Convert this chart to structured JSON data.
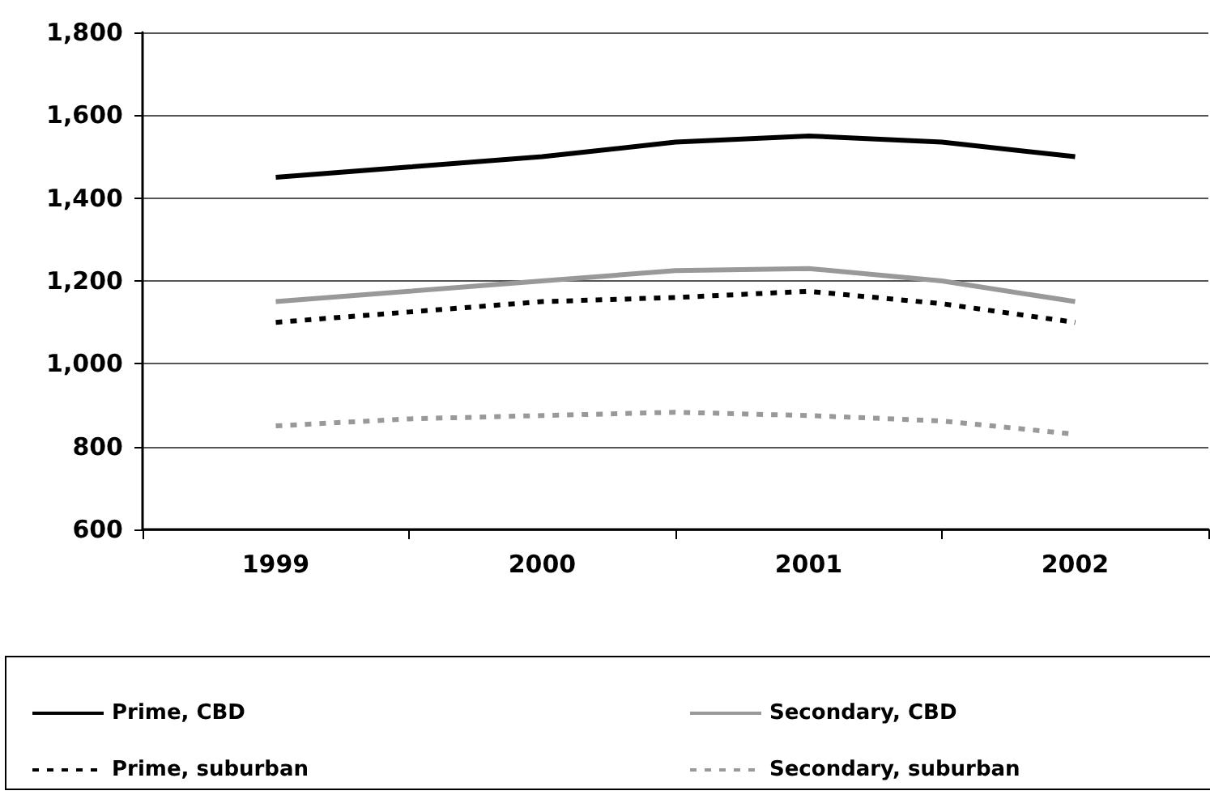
{
  "chart_data": {
    "type": "line",
    "x": [
      1999,
      1999.5,
      2000,
      2000.5,
      2001,
      2001.5,
      2002
    ],
    "xlim": [
      1998.5,
      2002.5
    ],
    "xticks": [
      {
        "value": 1998.5,
        "label": null
      },
      {
        "value": 1999,
        "label": "1999"
      },
      {
        "value": 1999.5,
        "label": null
      },
      {
        "value": 2000,
        "label": "2000"
      },
      {
        "value": 2000.5,
        "label": null
      },
      {
        "value": 2001,
        "label": "2001"
      },
      {
        "value": 2001.5,
        "label": null
      },
      {
        "value": 2002,
        "label": "2002"
      },
      {
        "value": 2002.5,
        "label": null
      }
    ],
    "ylim": [
      600,
      1800
    ],
    "yticks": [
      {
        "value": 600,
        "label": "600"
      },
      {
        "value": 800,
        "label": "800"
      },
      {
        "value": 1000,
        "label": "1,000"
      },
      {
        "value": 1200,
        "label": "1,200"
      },
      {
        "value": 1400,
        "label": "1,400"
      },
      {
        "value": 1600,
        "label": "1,600"
      },
      {
        "value": 1800,
        "label": "1,800"
      }
    ],
    "series": [
      {
        "name": "Prime, CBD",
        "color": "#000000",
        "line_style": "solid",
        "values": [
          1450,
          1475,
          1500,
          1535,
          1550,
          1535,
          1500
        ]
      },
      {
        "name": "Secondary, CBD",
        "color": "#999999",
        "line_style": "solid",
        "values": [
          1150,
          1175,
          1200,
          1225,
          1230,
          1200,
          1150
        ]
      },
      {
        "name": "Prime, suburban",
        "color": "#000000",
        "line_style": "dashed",
        "values": [
          1100,
          1125,
          1150,
          1160,
          1175,
          1145,
          1100
        ]
      },
      {
        "name": "Secondary, suburban",
        "color": "#999999",
        "line_style": "dashed",
        "values": [
          850,
          867,
          875,
          883,
          875,
          862,
          830
        ]
      }
    ],
    "grid": "y",
    "marker": "none",
    "legend": "bottom"
  }
}
